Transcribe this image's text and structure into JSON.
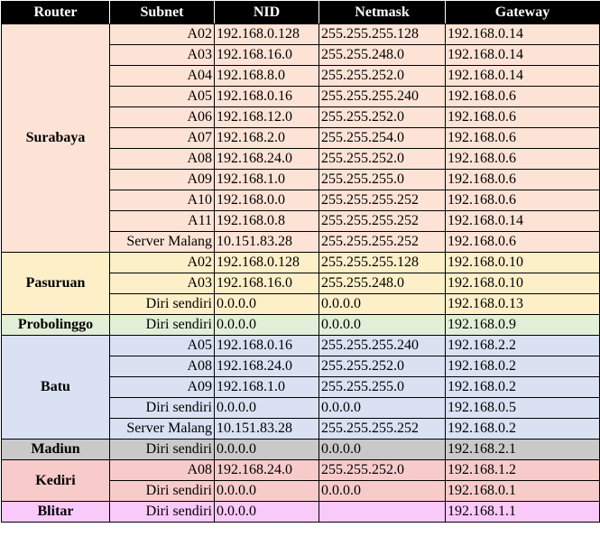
{
  "headers": [
    "Router",
    "Subnet",
    "NID",
    "Netmask",
    "Gateway"
  ],
  "groups": [
    {
      "router": "Surabaya",
      "color": "#fde3d6",
      "rows": [
        {
          "subnet": "A02",
          "nid": "192.168.0.128",
          "netmask": "255.255.255.128",
          "gateway": "192.168.0.14"
        },
        {
          "subnet": "A03",
          "nid": "192.168.16.0",
          "netmask": "255.255.248.0",
          "gateway": "192.168.0.14"
        },
        {
          "subnet": "A04",
          "nid": "192.168.8.0",
          "netmask": "255.255.252.0",
          "gateway": "192.168.0.14"
        },
        {
          "subnet": "A05",
          "nid": "192.168.0.16",
          "netmask": "255.255.255.240",
          "gateway": "192.168.0.6"
        },
        {
          "subnet": "A06",
          "nid": "192.168.12.0",
          "netmask": "255.255.252.0",
          "gateway": "192.168.0.6"
        },
        {
          "subnet": "A07",
          "nid": "192.168.2.0",
          "netmask": "255.255.254.0",
          "gateway": "192.168.0.6"
        },
        {
          "subnet": "A08",
          "nid": "192.168.24.0",
          "netmask": "255.255.252.0",
          "gateway": "192.168.0.6"
        },
        {
          "subnet": "A09",
          "nid": "192.168.1.0",
          "netmask": "255.255.255.0",
          "gateway": "192.168.0.6"
        },
        {
          "subnet": "A10",
          "nid": "192.168.0.0",
          "netmask": "255.255.255.252",
          "gateway": "192.168.0.6"
        },
        {
          "subnet": "A11",
          "nid": "192.168.0.8",
          "netmask": "255.255.255.252",
          "gateway": "192.168.0.14"
        },
        {
          "subnet": "Server Malang",
          "nid": "10.151.83.28",
          "netmask": "255.255.255.252",
          "gateway": "192.168.0.6"
        }
      ]
    },
    {
      "router": "Pasuruan",
      "color": "#fdefc8",
      "rows": [
        {
          "subnet": "A02",
          "nid": "192.168.0.128",
          "netmask": "255.255.255.128",
          "gateway": "192.168.0.10"
        },
        {
          "subnet": "A03",
          "nid": "192.168.16.0",
          "netmask": "255.255.248.0",
          "gateway": "192.168.0.10"
        },
        {
          "subnet": "Diri sendiri",
          "nid": "0.0.0.0",
          "netmask": "0.0.0.0",
          "gateway": "192.168.0.13"
        }
      ]
    },
    {
      "router": "Probolinggo",
      "color": "#e2efd8",
      "rows": [
        {
          "subnet": "Diri sendiri",
          "nid": "0.0.0.0",
          "netmask": "0.0.0.0",
          "gateway": "192.168.0.9"
        }
      ]
    },
    {
      "router": "Batu",
      "color": "#d9e1f2",
      "rows": [
        {
          "subnet": "A05",
          "nid": "192.168.0.16",
          "netmask": "255.255.255.240",
          "gateway": "192.168.2.2"
        },
        {
          "subnet": "A08",
          "nid": "192.168.24.0",
          "netmask": "255.255.252.0",
          "gateway": "192.168.0.2"
        },
        {
          "subnet": "A09",
          "nid": "192.168.1.0",
          "netmask": "255.255.255.0",
          "gateway": "192.168.0.2"
        },
        {
          "subnet": "Diri sendiri",
          "nid": "0.0.0.0",
          "netmask": "0.0.0.0",
          "gateway": "192.168.0.5"
        },
        {
          "subnet": "Server Malang",
          "nid": "10.151.83.28",
          "netmask": "255.255.255.252",
          "gateway": "192.168.0.2"
        }
      ]
    },
    {
      "router": "Madiun",
      "color": "#c9c9c9",
      "rows": [
        {
          "subnet": "Diri sendiri",
          "nid": "0.0.0.0",
          "netmask": "0.0.0.0",
          "gateway": "192.168.2.1"
        }
      ]
    },
    {
      "router": "Kediri",
      "color": "#f8cbcb",
      "rows": [
        {
          "subnet": "A08",
          "nid": "192.168.24.0",
          "netmask": "255.255.252.0",
          "gateway": "192.168.1.2"
        },
        {
          "subnet": "Diri sendiri",
          "nid": "0.0.0.0",
          "netmask": "0.0.0.0",
          "gateway": "192.168.0.1"
        }
      ]
    },
    {
      "router": "Blitar",
      "color": "#f9c9f9",
      "rows": [
        {
          "subnet": "Diri sendiri",
          "nid": "0.0.0.0",
          "netmask": "",
          "gateway": "192.168.1.1"
        }
      ]
    }
  ]
}
